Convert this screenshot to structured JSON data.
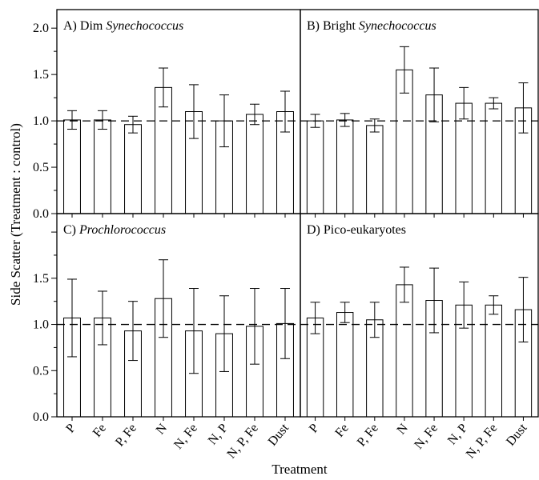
{
  "figure": {
    "ylabel": "Side Scatter (Treatment : control)",
    "xlabel": "Treatment"
  },
  "chart_data": [
    {
      "type": "bar",
      "panel_letter": "A)",
      "title_plain": "Dim",
      "title_italic": "Synechococcus",
      "categories": [
        "P",
        "Fe",
        "P, Fe",
        "N",
        "N, Fe",
        "N, P",
        "N, P, Fe",
        "Dust"
      ],
      "values": [
        1.01,
        1.01,
        0.96,
        1.36,
        1.1,
        1.0,
        1.07,
        1.1
      ],
      "errors": [
        0.1,
        0.1,
        0.09,
        0.21,
        0.29,
        0.28,
        0.11,
        0.22
      ],
      "ylim": [
        0,
        2.2
      ],
      "yticks": [
        "0.0",
        "0.5",
        "1.0",
        "1.5",
        "2.0"
      ],
      "reference_line": 1.0
    },
    {
      "type": "bar",
      "panel_letter": "B)",
      "title_plain": "Bright",
      "title_italic": "Synechococcus",
      "categories": [
        "P",
        "Fe",
        "P, Fe",
        "N",
        "N, Fe",
        "N, P",
        "N, P, Fe",
        "Dust"
      ],
      "values": [
        1.0,
        1.01,
        0.95,
        1.55,
        1.28,
        1.19,
        1.19,
        1.14
      ],
      "errors": [
        0.07,
        0.07,
        0.07,
        0.25,
        0.29,
        0.17,
        0.06,
        0.27
      ],
      "ylim": [
        0,
        2.2
      ],
      "reference_line": 1.0
    },
    {
      "type": "bar",
      "panel_letter": "C)",
      "title_plain": "",
      "title_italic": "Prochlorococcus",
      "categories": [
        "P",
        "Fe",
        "P, Fe",
        "N",
        "N, Fe",
        "N, P",
        "N, P, Fe",
        "Dust"
      ],
      "values": [
        1.07,
        1.07,
        0.93,
        1.28,
        0.93,
        0.9,
        0.98,
        1.01
      ],
      "errors": [
        0.42,
        0.29,
        0.32,
        0.42,
        0.46,
        0.41,
        0.41,
        0.38
      ],
      "ylim": [
        0,
        2.2
      ],
      "yticks": [
        "0.0",
        "0.5",
        "1.0",
        "1.5"
      ],
      "reference_line": 1.0
    },
    {
      "type": "bar",
      "panel_letter": "D)",
      "title_plain": "Pico-eukaryotes",
      "title_italic": "",
      "categories": [
        "P",
        "Fe",
        "P, Fe",
        "N",
        "N, Fe",
        "N, P",
        "N, P, Fe",
        "Dust"
      ],
      "values": [
        1.07,
        1.13,
        1.05,
        1.43,
        1.26,
        1.21,
        1.21,
        1.16
      ],
      "errors": [
        0.17,
        0.11,
        0.19,
        0.19,
        0.35,
        0.25,
        0.1,
        0.35
      ],
      "ylim": [
        0,
        2.2
      ],
      "reference_line": 1.0
    }
  ]
}
